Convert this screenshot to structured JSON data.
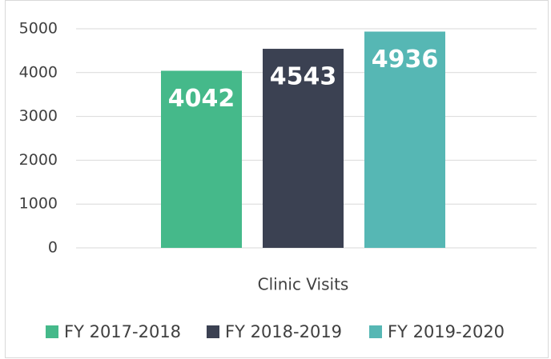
{
  "chart_data": {
    "type": "bar",
    "categories": [
      "Clinic Visits"
    ],
    "series": [
      {
        "name": "FY 2017-2018",
        "color": "#45b98a",
        "values": [
          4042
        ]
      },
      {
        "name": "FY 2018-2019",
        "color": "#3b4152",
        "values": [
          4543
        ]
      },
      {
        "name": "FY 2019-2020",
        "color": "#56b7b4",
        "values": [
          4936
        ]
      }
    ],
    "ylim": [
      0,
      5000
    ],
    "yticks": [
      0,
      1000,
      2000,
      3000,
      4000,
      5000
    ],
    "grid": true,
    "legend": "bottom"
  }
}
